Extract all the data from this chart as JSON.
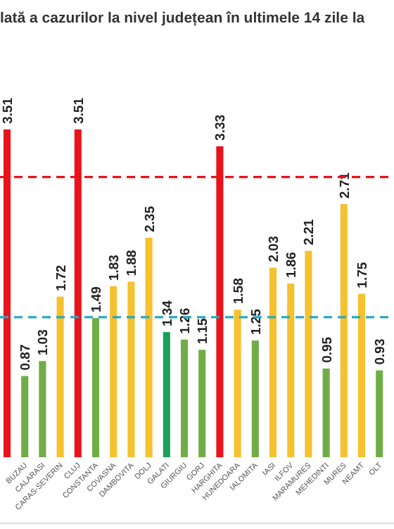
{
  "chart_data": {
    "type": "bar",
    "title": "lată a cazurilor la nivel județean în ultimele 14 zile la",
    "categories": [
      null,
      "BUZAU",
      "CALARASI",
      "CARAS-SEVERIN",
      "CLUJ",
      "CONSTANTA",
      "COVASNA",
      "DAMBOVITA",
      "DOLJ",
      "GALATI",
      "GIURGIU",
      "GORJ",
      "HARGHITA",
      "HUNEDOARA",
      "IALOMITA",
      "IASI",
      "ILFOV",
      "MARAMURES",
      "MEHEDINTI",
      "MURES",
      "NEAMT",
      "OLT"
    ],
    "values": [
      3.51,
      0.87,
      1.03,
      1.72,
      3.51,
      1.49,
      1.83,
      1.88,
      2.35,
      1.34,
      1.26,
      1.15,
      3.33,
      1.58,
      1.25,
      2.03,
      1.86,
      2.21,
      0.95,
      2.71,
      1.75,
      0.93
    ],
    "colors": [
      "#e8141b",
      "#70ad47",
      "#70ad47",
      "#f5c12e",
      "#e8141b",
      "#70ad47",
      "#f5c12e",
      "#f5c12e",
      "#f5c12e",
      "#1aa05a",
      "#70ad47",
      "#70ad47",
      "#e8141b",
      "#f5c12e",
      "#70ad47",
      "#f5c12e",
      "#f5c12e",
      "#f5c12e",
      "#70ad47",
      "#f5c12e",
      "#f5c12e",
      "#70ad47"
    ],
    "data_labels": true,
    "ref_lines": [
      {
        "axis": "y",
        "value": 3,
        "color": "#e8141b",
        "line_style": "dashed"
      },
      {
        "axis": "y",
        "value": 1.5,
        "color": "#2aa7c0",
        "line_style": "dashed"
      }
    ]
  }
}
